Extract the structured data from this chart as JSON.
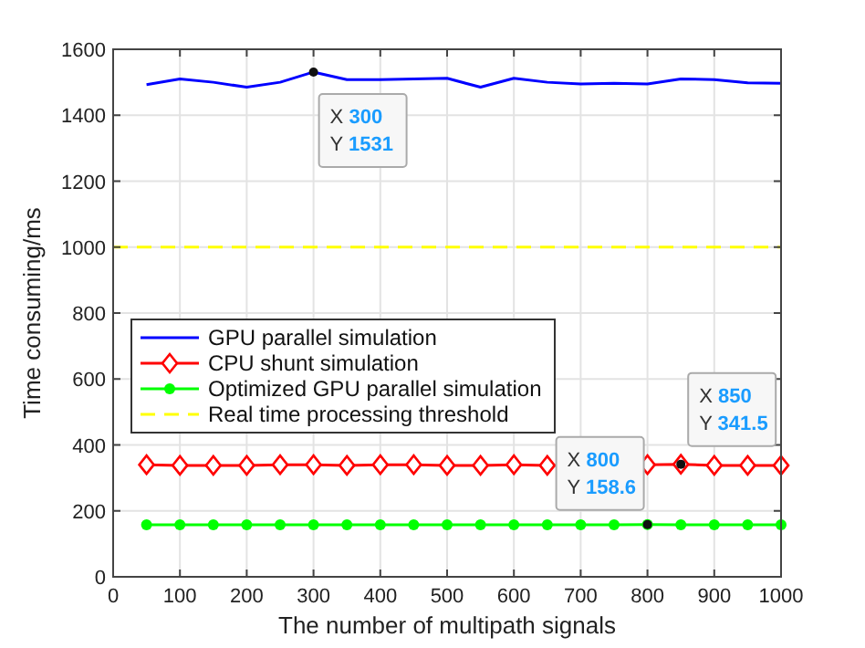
{
  "chart_data": {
    "type": "line",
    "xlabel": "The number of multipath signals",
    "ylabel": "Time consuming/ms",
    "x": [
      50,
      100,
      150,
      200,
      250,
      300,
      350,
      400,
      450,
      500,
      550,
      600,
      650,
      700,
      750,
      800,
      850,
      900,
      950,
      1000
    ],
    "series": [
      {
        "name": "GPU parallel simulation",
        "color": "#0000ff",
        "marker": "none",
        "line_style": "solid",
        "values": [
          1493,
          1510,
          1500,
          1485,
          1500,
          1531,
          1508,
          1508,
          1510,
          1512,
          1485,
          1512,
          1500,
          1495,
          1497,
          1495,
          1510,
          1508,
          1498,
          1497
        ]
      },
      {
        "name": "CPU shunt simulation",
        "color": "#ff0000",
        "marker": "diamond",
        "line_style": "solid",
        "values": [
          340,
          338,
          338,
          338,
          340,
          340,
          338,
          340,
          340,
          338,
          338,
          340,
          338,
          null,
          null,
          340,
          341.5,
          338,
          338,
          338
        ]
      },
      {
        "name": "Optimized GPU parallel simulation",
        "color": "#00ff00",
        "marker": "circle",
        "line_style": "solid",
        "values": [
          158,
          158,
          158,
          158,
          158,
          158,
          158,
          158,
          158,
          158,
          158,
          158,
          158,
          158,
          158,
          158.6,
          158,
          158,
          158,
          158
        ]
      },
      {
        "name": "Real time processing threshold",
        "color": "#ffff00",
        "marker": "none",
        "line_style": "dashed",
        "x": [
          0,
          1000
        ],
        "values": [
          1000,
          1000
        ]
      }
    ],
    "annotations": [
      {
        "text": "X 300\nY 1531",
        "x": 300,
        "y": 1531
      },
      {
        "text": "X 800\nY 158.6",
        "x": 800,
        "y": 158.6
      },
      {
        "text": "X 850\nY 341.5",
        "x": 850,
        "y": 341.5
      }
    ],
    "xlim": [
      0,
      1000
    ],
    "xticks": [
      0,
      100,
      200,
      300,
      400,
      500,
      600,
      700,
      800,
      900,
      1000
    ],
    "ylim": [
      0,
      1600
    ],
    "yticks": [
      0,
      200,
      400,
      600,
      800,
      1000,
      1200,
      1400,
      1600
    ],
    "grid": true,
    "legend": "left"
  }
}
